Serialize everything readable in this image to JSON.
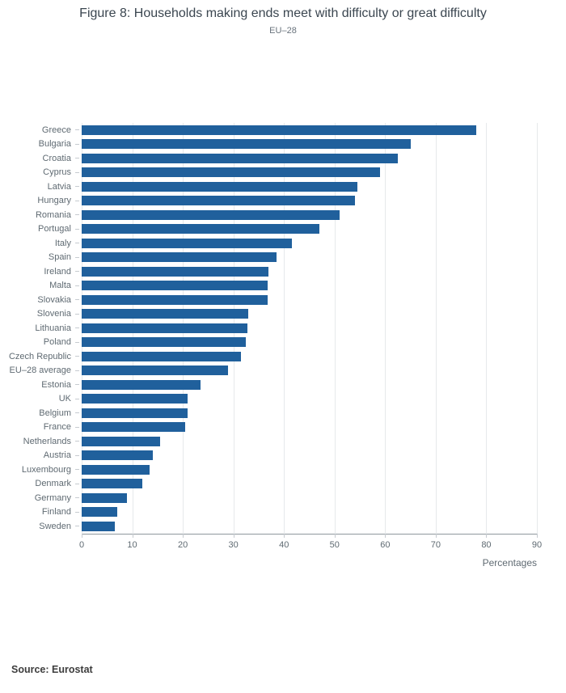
{
  "chart_data": {
    "type": "bar",
    "orientation": "horizontal",
    "title": "Figure 8: Households making ends meet with difficulty or great difficulty",
    "subtitle": "EU–28",
    "source_label": "Source: Eurostat",
    "xlabel": "Percentages",
    "xlim": [
      0,
      90
    ],
    "xticks": [
      0,
      10,
      20,
      30,
      40,
      50,
      60,
      70,
      80,
      90
    ],
    "grid": true,
    "legend": "none",
    "bar_color": "#20609c",
    "categories": [
      "Greece",
      "Bulgaria",
      "Croatia",
      "Cyprus",
      "Latvia",
      "Hungary",
      "Romania",
      "Portugal",
      "Italy",
      "Spain",
      "Ireland",
      "Malta",
      "Slovakia",
      "Slovenia",
      "Lithuania",
      "Poland",
      "Czech Republic",
      "EU–28 average",
      "Estonia",
      "UK",
      "Belgium",
      "France",
      "Netherlands",
      "Austria",
      "Luxembourg",
      "Denmark",
      "Germany",
      "Finland",
      "Sweden"
    ],
    "values": [
      78,
      65,
      62.5,
      59,
      54.5,
      54,
      51,
      47,
      41.5,
      38.5,
      37,
      36.7,
      36.7,
      33,
      32.7,
      32.4,
      31.5,
      29,
      23.5,
      21,
      21,
      20.5,
      15.5,
      14,
      13.5,
      12,
      9,
      7,
      6.5
    ]
  }
}
